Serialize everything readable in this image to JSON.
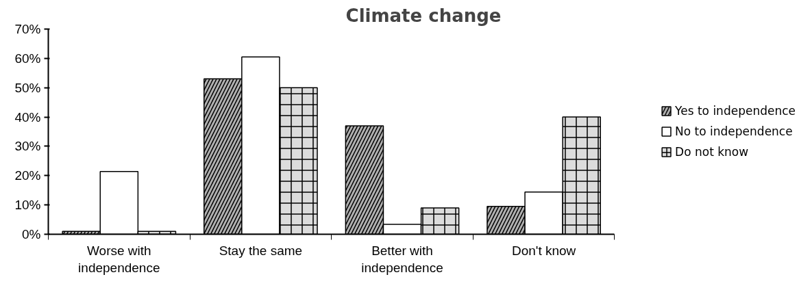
{
  "chart_data": {
    "type": "bar",
    "title": "Climate change",
    "categories": [
      "Worse with independence",
      "Stay the same",
      "Better with independence",
      "Don't know"
    ],
    "series": [
      {
        "name": "Yes to independence",
        "color": "#b0b0b0",
        "values": [
          1,
          53,
          37,
          9.5
        ]
      },
      {
        "name": "No to independence",
        "color": "#ffffff",
        "values": [
          21.4,
          60.5,
          3.4,
          14.4
        ]
      },
      {
        "name": "Do not know",
        "color": "#dcdcdc",
        "values": [
          1,
          50,
          9,
          40
        ]
      }
    ],
    "ylim": [
      0,
      70
    ],
    "yticks": [
      {
        "value": 0,
        "label": "0%"
      },
      {
        "value": 10,
        "label": "10%"
      },
      {
        "value": 20,
        "label": "20%"
      },
      {
        "value": 30,
        "label": "30%"
      },
      {
        "value": 40,
        "label": "40%"
      },
      {
        "value": 50,
        "label": "50%"
      },
      {
        "value": 60,
        "label": "60%"
      },
      {
        "value": 70,
        "label": "70%"
      }
    ],
    "grid": false,
    "legend": "right"
  }
}
